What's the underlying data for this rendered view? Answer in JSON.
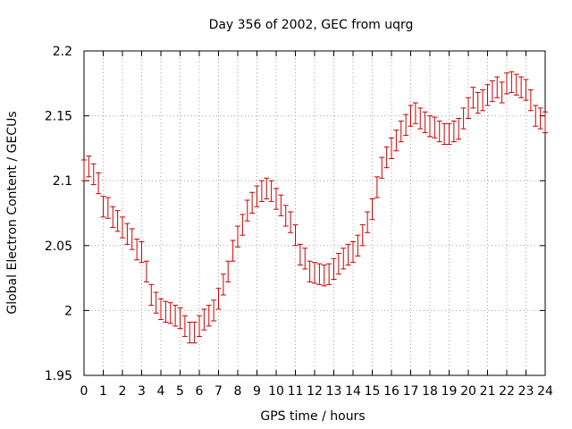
{
  "chart_data": {
    "type": "scatter",
    "title": "Day 356 of 2002, GEC from uqrg",
    "xlabel": "GPS time / hours",
    "ylabel": "Global Electron Content / GECUs",
    "xlim": [
      0,
      24
    ],
    "ylim": [
      1.95,
      2.2
    ],
    "x_ticks": [
      0,
      1,
      2,
      3,
      4,
      5,
      6,
      7,
      8,
      9,
      10,
      11,
      12,
      13,
      14,
      15,
      16,
      17,
      18,
      19,
      20,
      21,
      22,
      23,
      24
    ],
    "y_ticks": [
      1.95,
      2.0,
      2.05,
      2.1,
      2.15,
      2.2
    ],
    "y_tick_labels": [
      "1.95",
      "2",
      "2.05",
      "2.1",
      "2.15",
      "2.2"
    ],
    "grid": true,
    "series_color": "#cc0000",
    "error": 0.008,
    "series": [
      {
        "name": "GEC",
        "x": [
          0.0,
          0.25,
          0.5,
          0.75,
          1.0,
          1.25,
          1.5,
          1.75,
          2.0,
          2.25,
          2.5,
          2.75,
          3.0,
          3.25,
          3.5,
          3.75,
          4.0,
          4.25,
          4.5,
          4.75,
          5.0,
          5.25,
          5.5,
          5.75,
          6.0,
          6.25,
          6.5,
          6.75,
          7.0,
          7.25,
          7.5,
          7.75,
          8.0,
          8.25,
          8.5,
          8.75,
          9.0,
          9.25,
          9.5,
          9.75,
          10.0,
          10.25,
          10.5,
          10.75,
          11.0,
          11.25,
          11.5,
          11.75,
          12.0,
          12.25,
          12.5,
          12.75,
          13.0,
          13.25,
          13.5,
          13.75,
          14.0,
          14.25,
          14.5,
          14.75,
          15.0,
          15.25,
          15.5,
          15.75,
          16.0,
          16.25,
          16.5,
          16.75,
          17.0,
          17.25,
          17.5,
          17.75,
          18.0,
          18.25,
          18.5,
          18.75,
          19.0,
          19.25,
          19.5,
          19.75,
          20.0,
          20.25,
          20.5,
          20.75,
          21.0,
          21.25,
          21.5,
          21.75,
          22.0,
          22.25,
          22.5,
          22.75,
          23.0,
          23.25,
          23.5,
          23.75,
          24.0
        ],
        "y": [
          2.108,
          2.111,
          2.105,
          2.098,
          2.08,
          2.079,
          2.072,
          2.069,
          2.064,
          2.059,
          2.055,
          2.047,
          2.045,
          2.03,
          2.012,
          2.006,
          2.001,
          1.999,
          1.998,
          1.996,
          1.994,
          1.988,
          1.983,
          1.983,
          1.988,
          1.993,
          1.996,
          2.0,
          2.009,
          2.02,
          2.03,
          2.046,
          2.057,
          2.066,
          2.077,
          2.083,
          2.088,
          2.092,
          2.094,
          2.092,
          2.086,
          2.081,
          2.073,
          2.068,
          2.058,
          2.043,
          2.04,
          2.03,
          2.029,
          2.028,
          2.027,
          2.028,
          2.032,
          2.036,
          2.04,
          2.043,
          2.045,
          2.05,
          2.058,
          2.068,
          2.078,
          2.095,
          2.11,
          2.118,
          2.125,
          2.131,
          2.138,
          2.143,
          2.15,
          2.152,
          2.148,
          2.145,
          2.142,
          2.141,
          2.138,
          2.136,
          2.136,
          2.138,
          2.14,
          2.148,
          2.156,
          2.164,
          2.16,
          2.162,
          2.166,
          2.169,
          2.172,
          2.168,
          2.175,
          2.176,
          2.174,
          2.172,
          2.17,
          2.162,
          2.15,
          2.148,
          2.145
        ]
      }
    ]
  }
}
